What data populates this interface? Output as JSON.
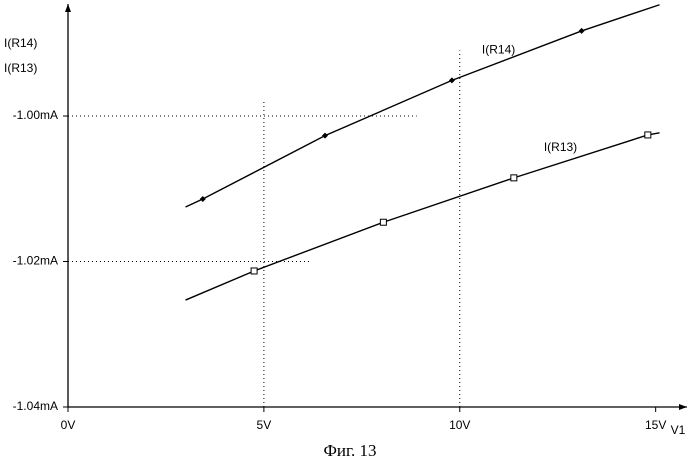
{
  "chart_data": {
    "type": "line",
    "caption": "Фиг. 13",
    "x_label": "V1",
    "xlim": [
      0,
      15.8
    ],
    "ylim": [
      -1.04,
      -0.9846
    ],
    "xticks": [
      {
        "value": 0,
        "label": "0V"
      },
      {
        "value": 5,
        "label": "5V"
      },
      {
        "value": 10,
        "label": "10V"
      },
      {
        "value": 15,
        "label": "15V"
      }
    ],
    "yticks": [
      {
        "value": -1.04,
        "label": "-1.04mA"
      },
      {
        "value": -1.02,
        "label": "-1.02mA"
      },
      {
        "value": -1.0,
        "label": "-1.00mA"
      }
    ],
    "guides": [
      {
        "axis": "y",
        "value": -1.0,
        "to": 8.9
      },
      {
        "axis": "y",
        "value": -1.02,
        "to": 6.2
      },
      {
        "axis": "x",
        "value": 5,
        "to": -0.9978
      },
      {
        "axis": "x",
        "value": 10,
        "to": -0.991
      }
    ],
    "series": [
      {
        "name": "I(R14)",
        "color": "#000000",
        "marker": "diamond",
        "x": [
          3.0,
          3.44,
          6.56,
          9.8,
          13.11,
          15.1
        ],
        "values": [
          -1.0125,
          -1.0114,
          -1.0027,
          -0.9951,
          -0.9883,
          -0.9847
        ]
      },
      {
        "name": "I(R13)",
        "color": "#000000",
        "marker": "square",
        "x": [
          3.0,
          4.75,
          8.05,
          11.38,
          14.8,
          15.1
        ],
        "values": [
          -1.0253,
          -1.0213,
          -1.0146,
          -1.0085,
          -1.0026,
          -1.0023
        ]
      }
    ]
  }
}
